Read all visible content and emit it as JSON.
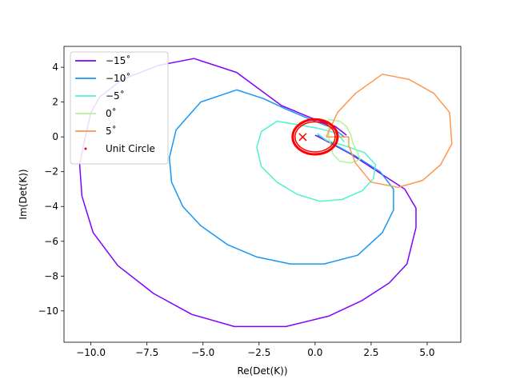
{
  "chart_data": {
    "type": "line",
    "title": "",
    "xlabel": "Re(Det(K))",
    "ylabel": "Im(Det(K))",
    "xlim": [
      -11.2,
      6.5
    ],
    "ylim": [
      -11.8,
      5.2
    ],
    "xticks": [
      -10.0,
      -7.5,
      -5.0,
      -2.5,
      0.0,
      2.5,
      5.0
    ],
    "xtick_labels": [
      "−10.0",
      "−7.5",
      "−5.0",
      "−2.5",
      "0.0",
      "2.5",
      "5.0"
    ],
    "yticks": [
      4,
      2,
      0,
      -2,
      -4,
      -6,
      -8,
      -10
    ],
    "ytick_labels": [
      "4",
      "2",
      "0",
      "−2",
      "−4",
      "−6",
      "−8",
      "−10"
    ],
    "grid": false,
    "legend_position": "top-left",
    "series": [
      {
        "name": "−15˚",
        "color": "#8000ff",
        "points": [
          [
            1.4,
            0.1
          ],
          [
            0.9,
            0.6
          ],
          [
            -0.2,
            1.1
          ],
          [
            -1.5,
            1.8
          ],
          [
            -3.5,
            3.7
          ],
          [
            -5.4,
            4.5
          ],
          [
            -7.0,
            4.1
          ],
          [
            -8.6,
            3.3
          ],
          [
            -9.6,
            2.3
          ],
          [
            -10.0,
            1.4
          ],
          [
            -10.3,
            -0.3
          ],
          [
            -10.5,
            -1.6
          ],
          [
            -10.4,
            -3.4
          ],
          [
            -9.9,
            -5.5
          ],
          [
            -8.8,
            -7.4
          ],
          [
            -7.2,
            -9.0
          ],
          [
            -5.5,
            -10.2
          ],
          [
            -3.6,
            -10.9
          ],
          [
            -1.3,
            -10.9
          ],
          [
            0.6,
            -10.3
          ],
          [
            2.1,
            -9.4
          ],
          [
            3.3,
            -8.4
          ],
          [
            4.1,
            -7.3
          ],
          [
            4.5,
            -5.2
          ],
          [
            4.5,
            -4.1
          ],
          [
            4.0,
            -3.0
          ],
          [
            2.8,
            -2.0
          ],
          [
            1.6,
            -1.0
          ],
          [
            0.6,
            -0.3
          ],
          [
            0.0,
            0.1
          ]
        ]
      },
      {
        "name": "−10˚",
        "color": "#1996f3",
        "points": [
          [
            1.3,
            0.0
          ],
          [
            0.8,
            0.5
          ],
          [
            -0.2,
            1.0
          ],
          [
            -1.3,
            1.6
          ],
          [
            -2.3,
            2.2
          ],
          [
            -3.5,
            2.7
          ],
          [
            -5.1,
            2.0
          ],
          [
            -6.2,
            0.4
          ],
          [
            -6.5,
            -1.2
          ],
          [
            -6.4,
            -2.6
          ],
          [
            -5.9,
            -4.0
          ],
          [
            -5.1,
            -5.1
          ],
          [
            -3.9,
            -6.2
          ],
          [
            -2.6,
            -6.9
          ],
          [
            -1.1,
            -7.3
          ],
          [
            0.4,
            -7.3
          ],
          [
            1.9,
            -6.8
          ],
          [
            3.0,
            -5.5
          ],
          [
            3.5,
            -4.2
          ],
          [
            3.5,
            -3.0
          ],
          [
            2.9,
            -2.0
          ],
          [
            1.8,
            -1.1
          ],
          [
            0.8,
            -0.4
          ],
          [
            0.1,
            0.1
          ]
        ]
      },
      {
        "name": "−5˚",
        "color": "#4df3ce",
        "points": [
          [
            1.3,
            -0.3
          ],
          [
            1.0,
            0.2
          ],
          [
            0.1,
            0.5
          ],
          [
            -0.8,
            0.7
          ],
          [
            -1.7,
            0.9
          ],
          [
            -2.4,
            0.3
          ],
          [
            -2.6,
            -0.6
          ],
          [
            -2.4,
            -1.7
          ],
          [
            -1.7,
            -2.6
          ],
          [
            -0.8,
            -3.3
          ],
          [
            0.2,
            -3.7
          ],
          [
            1.2,
            -3.6
          ],
          [
            2.1,
            -3.1
          ],
          [
            2.6,
            -2.4
          ],
          [
            2.7,
            -1.6
          ],
          [
            2.2,
            -0.9
          ],
          [
            1.3,
            -0.5
          ],
          [
            0.5,
            -0.2
          ],
          [
            0.1,
            0.2
          ]
        ]
      },
      {
        "name": "0˚",
        "color": "#b2f396",
        "points": [
          [
            0.6,
            1.0
          ],
          [
            1.1,
            0.9
          ],
          [
            1.4,
            0.6
          ],
          [
            1.6,
            0.1
          ],
          [
            1.7,
            -0.4
          ],
          [
            1.9,
            -0.9
          ],
          [
            2.0,
            -1.3
          ],
          [
            1.6,
            -1.5
          ],
          [
            1.1,
            -1.4
          ],
          [
            0.8,
            -1.0
          ],
          [
            0.7,
            -0.5
          ],
          [
            0.6,
            0.0
          ],
          [
            0.6,
            0.5
          ],
          [
            0.6,
            1.0
          ]
        ]
      },
      {
        "name": "5˚",
        "color": "#ff964f",
        "points": [
          [
            0.5,
            0.0
          ],
          [
            1.0,
            1.4
          ],
          [
            1.8,
            2.5
          ],
          [
            3.0,
            3.6
          ],
          [
            4.2,
            3.3
          ],
          [
            5.3,
            2.5
          ],
          [
            6.0,
            1.4
          ],
          [
            6.1,
            -0.4
          ],
          [
            5.6,
            -1.6
          ],
          [
            4.8,
            -2.5
          ],
          [
            3.7,
            -2.9
          ],
          [
            2.5,
            -2.6
          ],
          [
            1.8,
            -1.5
          ],
          [
            1.5,
            -0.5
          ],
          [
            1.5,
            0.0
          ],
          [
            0.5,
            0.0
          ]
        ]
      },
      {
        "name": "Unit Circle",
        "color": "#ff0000",
        "kind": "unit-circle"
      }
    ],
    "markers": [
      {
        "x": -0.55,
        "y": 0.0,
        "symbol": "×",
        "color": "#ff0000"
      }
    ]
  }
}
